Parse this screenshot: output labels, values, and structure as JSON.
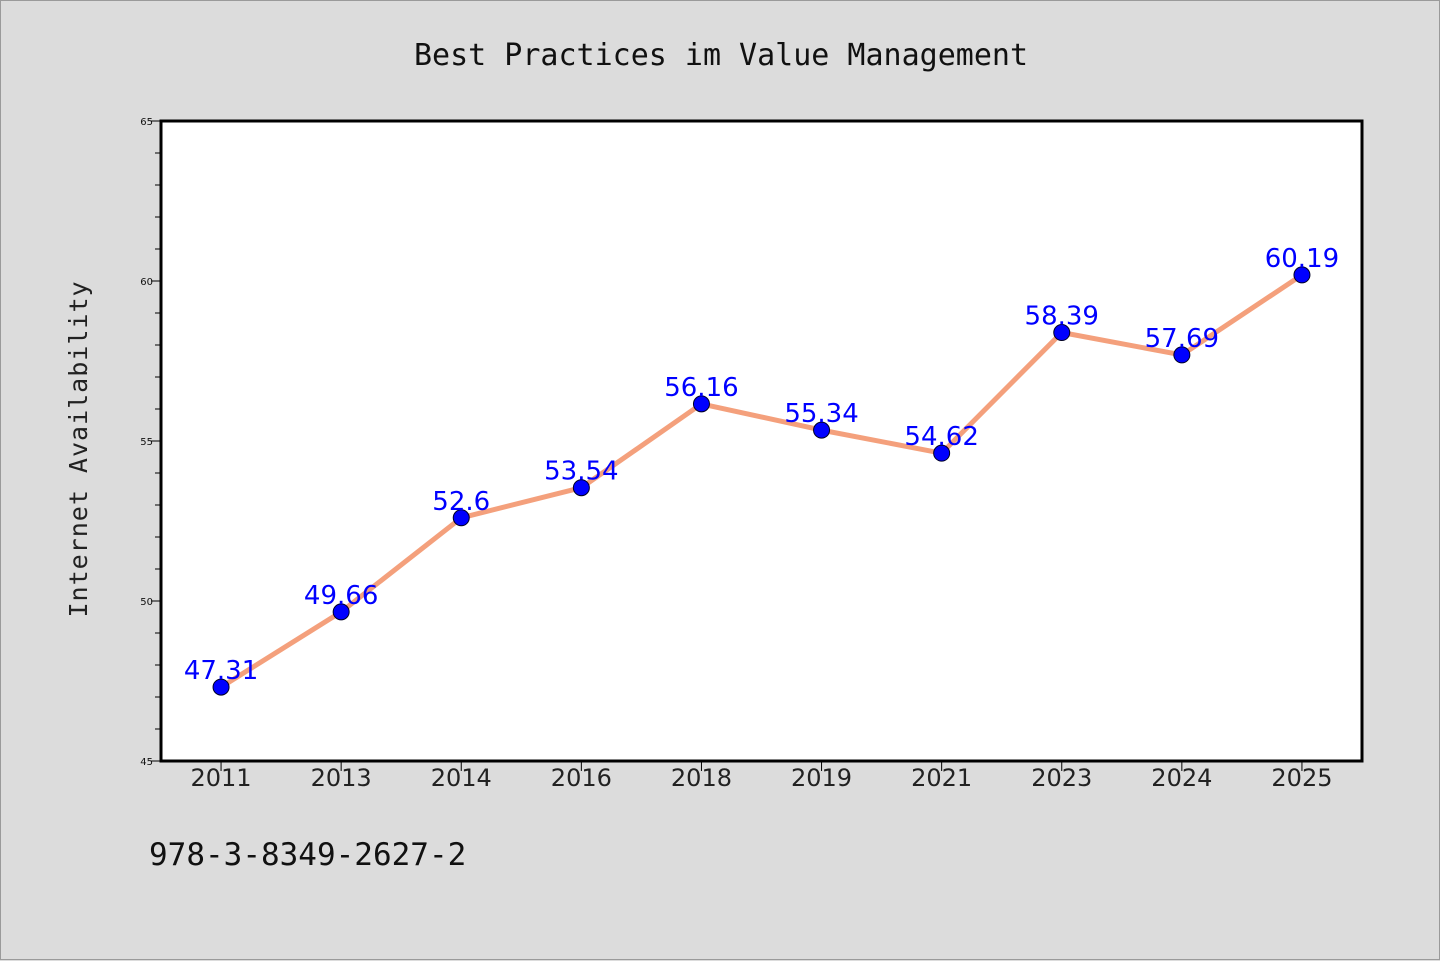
{
  "chart_data": {
    "type": "line",
    "title": "Best Practices im Value Management",
    "xlabel": "",
    "ylabel": "Internet Availability",
    "categories": [
      "2011",
      "2013",
      "2014",
      "2016",
      "2018",
      "2019",
      "2021",
      "2023",
      "2024",
      "2025"
    ],
    "series": [
      {
        "values": [
          47.31,
          49.66,
          52.6,
          53.54,
          56.16,
          55.34,
          54.62,
          58.39,
          57.69,
          60.19
        ]
      }
    ],
    "data_labels": [
      "47.31",
      "49.66",
      "52.6",
      "53.54",
      "56.16",
      "55.34",
      "54.62",
      "58.39",
      "57.69",
      "60.19"
    ],
    "ylim": [
      45,
      65
    ],
    "yticks": [
      45,
      50,
      55,
      60,
      65
    ],
    "grid": false,
    "colors": {
      "line": "#f4a07c",
      "marker": "#0000ff",
      "data_label": "#0000ff",
      "background": "#dcdcdc",
      "plot_background": "#ffffff"
    }
  },
  "footer": {
    "text": "978-3-8349-2627-2"
  }
}
